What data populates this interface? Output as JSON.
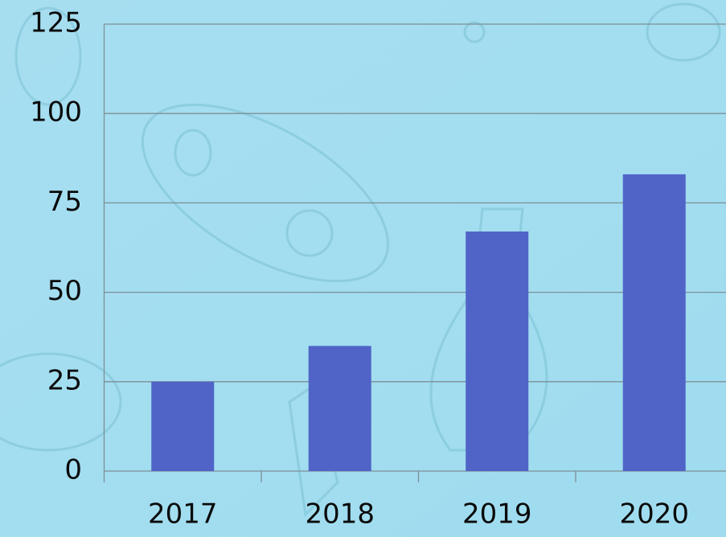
{
  "chart_data": {
    "type": "bar",
    "categories": [
      "2017",
      "2018",
      "2019",
      "2020"
    ],
    "values": [
      25,
      35,
      67,
      83
    ],
    "color": "#5064c8",
    "ylim": [
      0,
      125
    ],
    "yticks": [
      0,
      25,
      50,
      75,
      100,
      125
    ],
    "grid": true
  }
}
